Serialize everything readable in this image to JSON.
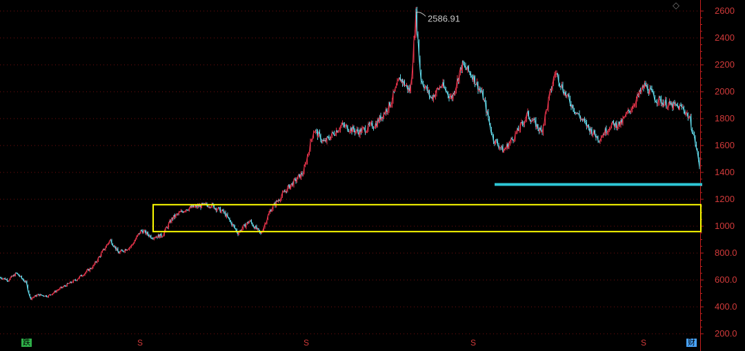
{
  "chart_data": {
    "type": "candlestick-index",
    "title": "",
    "xlabel": "",
    "ylabel": "",
    "ylim": [
      150,
      2660
    ],
    "y_ticks": [
      "2600",
      "2400",
      "2200",
      "2000",
      "1800",
      "1600",
      "1400",
      "1200",
      "1000",
      "800.0",
      "600.0",
      "400.0",
      "200.0"
    ],
    "grid": true,
    "peak_annotation": "2586.91",
    "series": [
      {
        "price_path": [
          [
            0,
            620
          ],
          [
            12,
            600
          ],
          [
            24,
            650
          ],
          [
            38,
            580
          ],
          [
            44,
            460
          ],
          [
            55,
            490
          ],
          [
            70,
            480
          ],
          [
            85,
            530
          ],
          [
            110,
            600
          ],
          [
            135,
            700
          ],
          [
            160,
            900
          ],
          [
            172,
            800
          ],
          [
            190,
            850
          ],
          [
            205,
            970
          ],
          [
            220,
            920
          ],
          [
            235,
            930
          ],
          [
            250,
            1060
          ],
          [
            270,
            1130
          ],
          [
            290,
            1150
          ],
          [
            305,
            1160
          ],
          [
            325,
            1100
          ],
          [
            345,
            950
          ],
          [
            362,
            1040
          ],
          [
            378,
            940
          ],
          [
            392,
            1120
          ],
          [
            415,
            1270
          ],
          [
            440,
            1400
          ],
          [
            455,
            1720
          ],
          [
            470,
            1620
          ],
          [
            495,
            1750
          ],
          [
            520,
            1700
          ],
          [
            545,
            1760
          ],
          [
            565,
            1900
          ],
          [
            580,
            2100
          ],
          [
            595,
            2000
          ],
          [
            603,
            2580
          ],
          [
            610,
            2100
          ],
          [
            625,
            1950
          ],
          [
            640,
            2050
          ],
          [
            655,
            1950
          ],
          [
            670,
            2200
          ],
          [
            685,
            2120
          ],
          [
            700,
            1970
          ],
          [
            715,
            1650
          ],
          [
            730,
            1560
          ],
          [
            750,
            1700
          ],
          [
            765,
            1830
          ],
          [
            785,
            1700
          ],
          [
            805,
            2150
          ],
          [
            820,
            1980
          ],
          [
            835,
            1850
          ],
          [
            850,
            1750
          ],
          [
            868,
            1650
          ],
          [
            885,
            1750
          ],
          [
            900,
            1760
          ],
          [
            920,
            1920
          ],
          [
            935,
            2050
          ],
          [
            950,
            1950
          ],
          [
            970,
            1900
          ],
          [
            990,
            1880
          ],
          [
            1000,
            1800
          ],
          [
            1008,
            1620
          ],
          [
            1015,
            1420
          ]
        ]
      }
    ],
    "annotations": {
      "support_line_value": 1310,
      "box_range": [
        960,
        1160
      ],
      "colors": {
        "price_up": "#e5334a",
        "price_down": "#5fd6e6",
        "axis": "#c81e1e",
        "box": "#ffff00",
        "support_line": "#2ec7d6"
      }
    }
  },
  "bottom_markers": {
    "left": "跌",
    "right": "财",
    "s_label": "S"
  },
  "icons": {
    "diamond": "◇"
  }
}
